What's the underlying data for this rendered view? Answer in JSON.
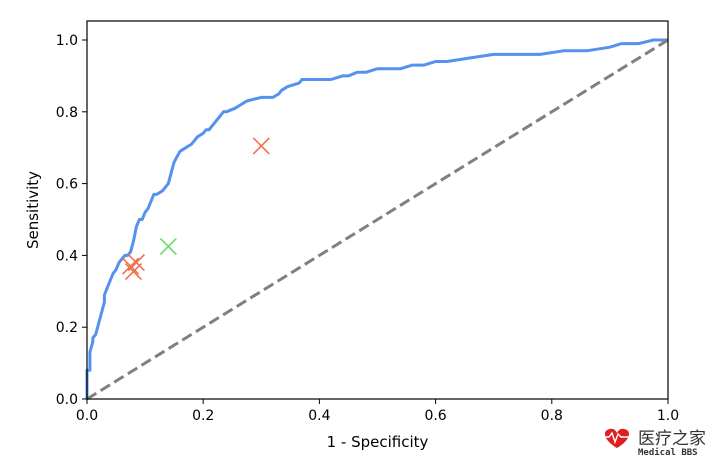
{
  "chart_data": {
    "type": "line",
    "title": "",
    "xlabel": "1 - Specificity",
    "ylabel": "Sensitivity",
    "xlim": [
      0.0,
      1.0
    ],
    "ylim": [
      0.0,
      1.05
    ],
    "xticks": [
      0.0,
      0.2,
      0.4,
      0.6,
      0.8,
      1.0
    ],
    "yticks": [
      0.0,
      0.2,
      0.4,
      0.6,
      0.8,
      1.0
    ],
    "xtick_labels": [
      "0.0",
      "0.2",
      "0.4",
      "0.6",
      "0.8",
      "1.0"
    ],
    "ytick_labels": [
      "0.0",
      "0.2",
      "0.4",
      "0.6",
      "0.8",
      "1.0"
    ],
    "grid": false,
    "series": [
      {
        "role": "roc_curve",
        "color": "#5591ee",
        "style": "solid",
        "x": [
          0.0,
          0.0,
          0.005,
          0.005,
          0.01,
          0.01,
          0.015,
          0.02,
          0.025,
          0.03,
          0.03,
          0.035,
          0.04,
          0.045,
          0.05,
          0.055,
          0.06,
          0.065,
          0.07,
          0.075,
          0.08,
          0.085,
          0.09,
          0.095,
          0.1,
          0.105,
          0.11,
          0.115,
          0.12,
          0.13,
          0.14,
          0.145,
          0.15,
          0.16,
          0.17,
          0.18,
          0.19,
          0.2,
          0.205,
          0.21,
          0.215,
          0.225,
          0.235,
          0.24,
          0.255,
          0.265,
          0.275,
          0.3,
          0.31,
          0.32,
          0.33,
          0.335,
          0.345,
          0.365,
          0.37,
          0.38,
          0.4,
          0.42,
          0.44,
          0.45,
          0.465,
          0.48,
          0.5,
          0.54,
          0.56,
          0.58,
          0.6,
          0.62,
          0.66,
          0.7,
          0.74,
          0.78,
          0.82,
          0.86,
          0.9,
          0.92,
          0.95,
          0.975,
          1.0
        ],
        "y": [
          0.0,
          0.08,
          0.08,
          0.13,
          0.16,
          0.17,
          0.18,
          0.21,
          0.24,
          0.27,
          0.29,
          0.31,
          0.33,
          0.35,
          0.36,
          0.38,
          0.39,
          0.4,
          0.4,
          0.41,
          0.44,
          0.48,
          0.5,
          0.5,
          0.52,
          0.53,
          0.55,
          0.57,
          0.57,
          0.58,
          0.6,
          0.63,
          0.66,
          0.69,
          0.7,
          0.71,
          0.73,
          0.74,
          0.75,
          0.75,
          0.76,
          0.78,
          0.8,
          0.8,
          0.81,
          0.82,
          0.83,
          0.84,
          0.84,
          0.84,
          0.85,
          0.86,
          0.87,
          0.88,
          0.89,
          0.89,
          0.89,
          0.89,
          0.9,
          0.9,
          0.91,
          0.91,
          0.92,
          0.92,
          0.93,
          0.93,
          0.94,
          0.94,
          0.95,
          0.96,
          0.96,
          0.96,
          0.97,
          0.97,
          0.98,
          0.99,
          0.99,
          1.0,
          1.0
        ]
      },
      {
        "role": "chance_line",
        "color": "#808080",
        "style": "dashed",
        "x": [
          0.0,
          1.0
        ],
        "y": [
          0.0,
          1.0
        ]
      }
    ],
    "points": [
      {
        "x": 0.3,
        "y": 0.705,
        "color": "#f07050",
        "marker": "x"
      },
      {
        "x": 0.14,
        "y": 0.425,
        "color": "#66dd66",
        "marker": "x"
      },
      {
        "x": 0.085,
        "y": 0.38,
        "color": "#f07050",
        "marker": "x"
      },
      {
        "x": 0.075,
        "y": 0.37,
        "color": "#f07050",
        "marker": "x"
      },
      {
        "x": 0.08,
        "y": 0.355,
        "color": "#f07050",
        "marker": "x"
      }
    ]
  },
  "watermark": {
    "text_cn": "医疗之家",
    "text_en": "Medical BBS",
    "color": "#e02020"
  }
}
